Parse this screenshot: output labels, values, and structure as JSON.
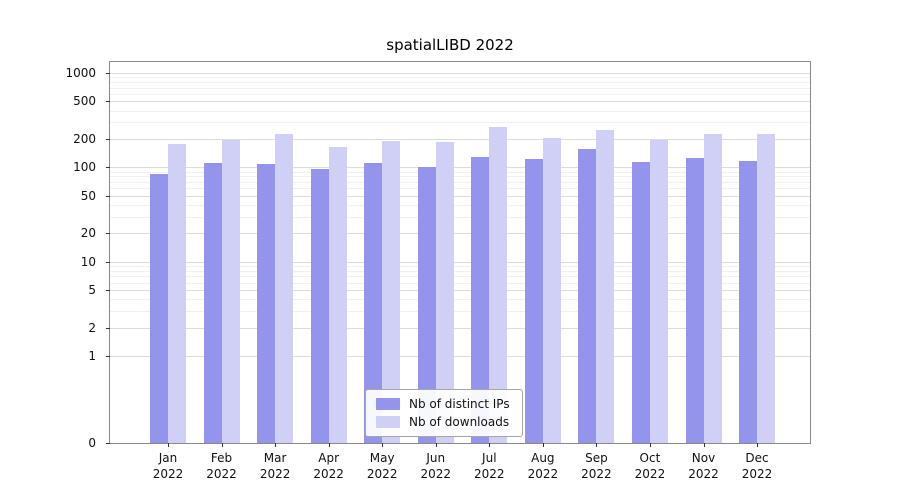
{
  "title": "spatialLIBD 2022",
  "chart_data": {
    "type": "bar",
    "title": "spatialLIBD 2022",
    "categories": [
      "Jan",
      "Feb",
      "Mar",
      "Apr",
      "May",
      "Jun",
      "Jul",
      "Aug",
      "Sep",
      "Oct",
      "Nov",
      "Dec"
    ],
    "year_label": "2022",
    "series": [
      {
        "name": "Nb of distinct IPs",
        "color": "#9494ec",
        "values": [
          86,
          112,
          108,
          95,
          112,
          100,
          128,
          124,
          158,
          113,
          127,
          117
        ]
      },
      {
        "name": "Nb of downloads",
        "color": "#d0d0f6",
        "values": [
          178,
          197,
          224,
          166,
          189,
          187,
          270,
          203,
          247,
          196,
          224,
          223
        ]
      }
    ],
    "y_ticks": [
      0,
      1,
      2,
      5,
      10,
      20,
      50,
      100,
      200,
      500,
      1000
    ],
    "y_minor_ticks": [
      3,
      4,
      6,
      7,
      8,
      9,
      30,
      40,
      60,
      70,
      80,
      90,
      300,
      400,
      600,
      700,
      800,
      900
    ],
    "y_scale": "log above 1, linear 0-1",
    "ylim": [
      0,
      1400
    ],
    "grid": true,
    "legend_position": "lower center"
  }
}
